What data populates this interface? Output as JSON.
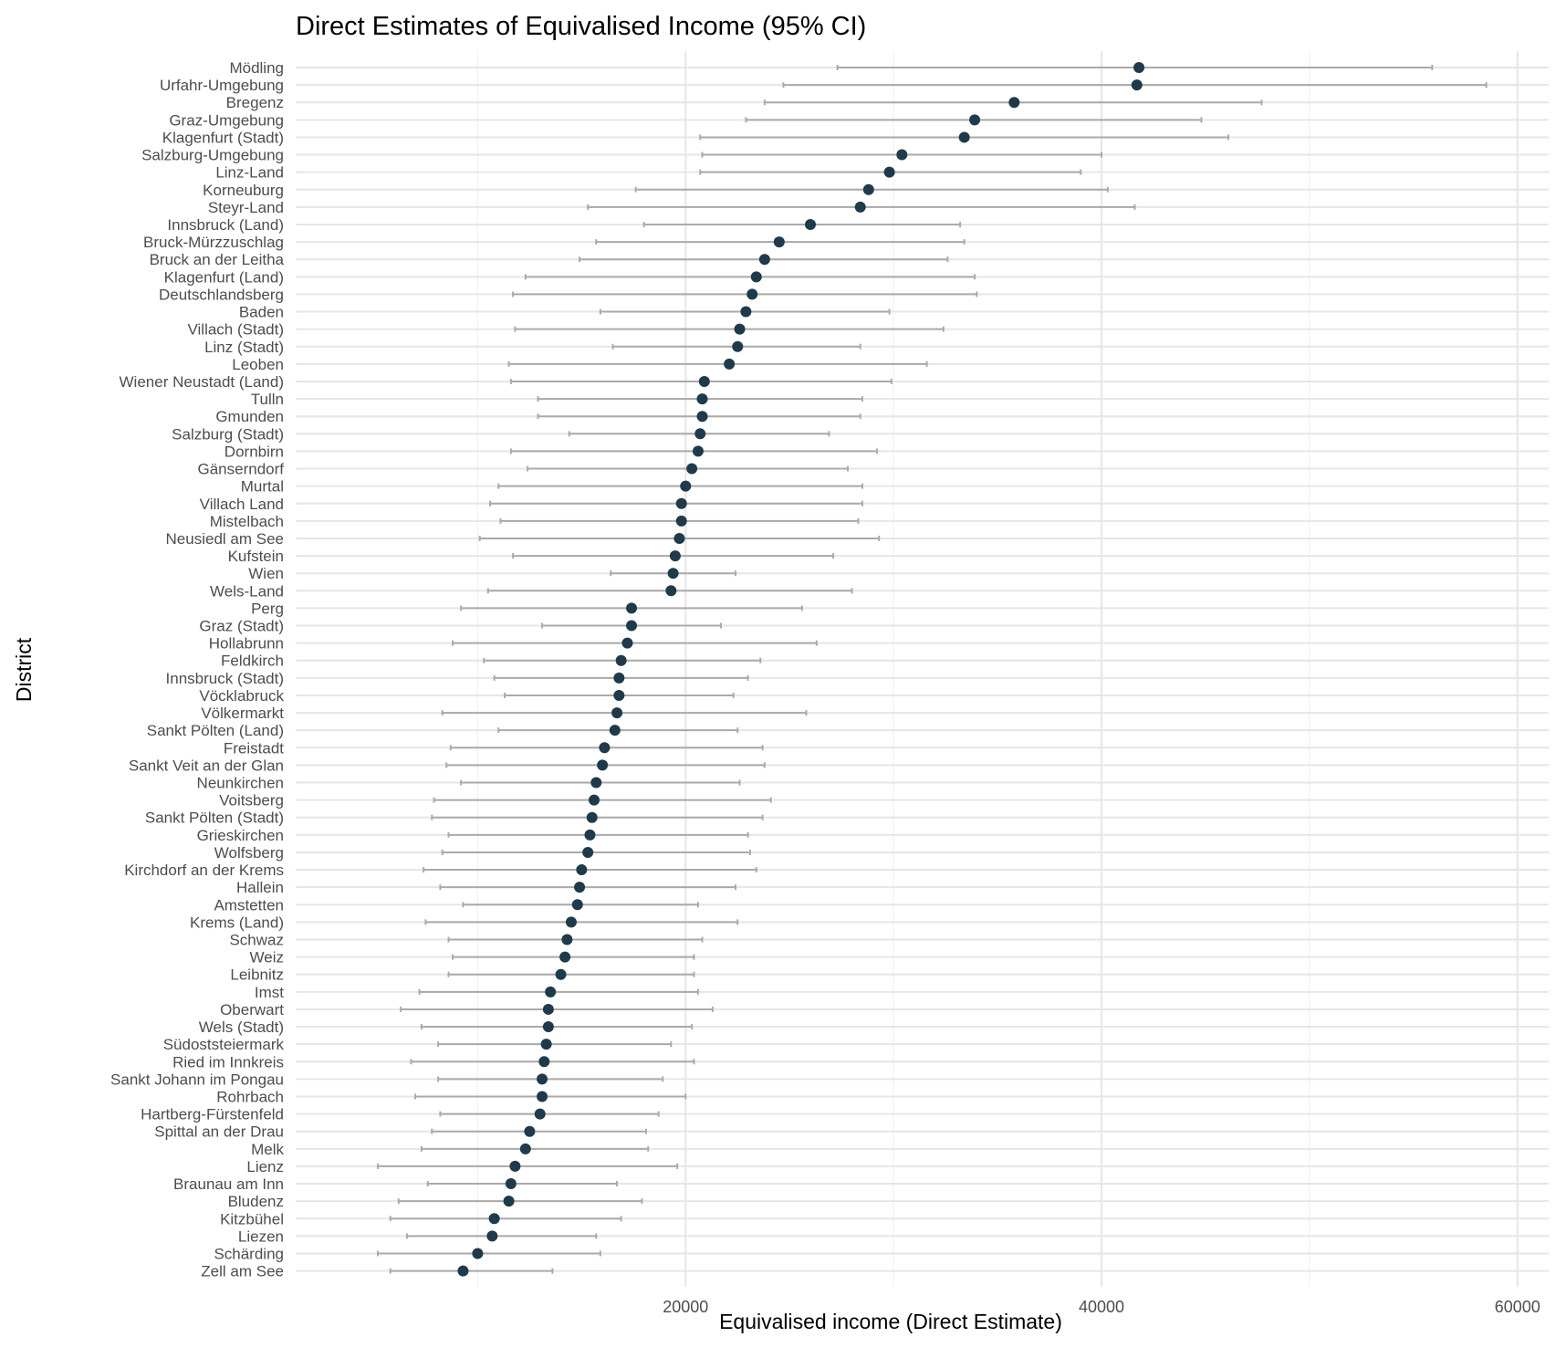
{
  "chart_data": {
    "type": "scatter",
    "title": "Direct Estimates of Equivalised Income (95% CI)",
    "xlabel": "Equivalised income (Direct Estimate)",
    "ylabel": "District",
    "xlim": [
      1250,
      61500
    ],
    "xticks": [
      20000,
      40000,
      60000
    ],
    "xtick_labels": [
      "20000",
      "40000",
      "60000"
    ],
    "grid": true,
    "legend": "none",
    "colors": {
      "point": "#1f3a4a",
      "interval": "#aaaaaa",
      "grid_major": "#e6e6e6",
      "grid_minor": "#f2f2f2"
    },
    "series": [
      {
        "points": [
          {
            "district": "Mödling",
            "estimate": 41800,
            "lower": 27300,
            "upper": 55900
          },
          {
            "district": "Urfahr-Umgebung",
            "estimate": 41700,
            "lower": 24700,
            "upper": 58500
          },
          {
            "district": "Bregenz",
            "estimate": 35800,
            "lower": 23800,
            "upper": 47700
          },
          {
            "district": "Graz-Umgebung",
            "estimate": 33900,
            "lower": 22900,
            "upper": 44800
          },
          {
            "district": "Klagenfurt (Stadt)",
            "estimate": 33400,
            "lower": 20700,
            "upper": 46100
          },
          {
            "district": "Salzburg-Umgebung",
            "estimate": 30400,
            "lower": 20800,
            "upper": 40000
          },
          {
            "district": "Linz-Land",
            "estimate": 29800,
            "lower": 20700,
            "upper": 39000
          },
          {
            "district": "Korneuburg",
            "estimate": 28800,
            "lower": 17600,
            "upper": 40300
          },
          {
            "district": "Steyr-Land",
            "estimate": 28400,
            "lower": 15300,
            "upper": 41600
          },
          {
            "district": "Innsbruck (Land)",
            "estimate": 26000,
            "lower": 18000,
            "upper": 33200
          },
          {
            "district": "Bruck-Mürzzuschlag",
            "estimate": 24500,
            "lower": 15700,
            "upper": 33400
          },
          {
            "district": "Bruck an der Leitha",
            "estimate": 23800,
            "lower": 14900,
            "upper": 32600
          },
          {
            "district": "Klagenfurt (Land)",
            "estimate": 23400,
            "lower": 12300,
            "upper": 33900
          },
          {
            "district": "Deutschlandsberg",
            "estimate": 23200,
            "lower": 11700,
            "upper": 34000
          },
          {
            "district": "Baden",
            "estimate": 22900,
            "lower": 15900,
            "upper": 29800
          },
          {
            "district": "Villach (Stadt)",
            "estimate": 22600,
            "lower": 11800,
            "upper": 32400
          },
          {
            "district": "Linz (Stadt)",
            "estimate": 22500,
            "lower": 16500,
            "upper": 28400
          },
          {
            "district": "Leoben",
            "estimate": 22100,
            "lower": 11500,
            "upper": 31600
          },
          {
            "district": "Wiener Neustadt (Land)",
            "estimate": 20900,
            "lower": 11600,
            "upper": 29900
          },
          {
            "district": "Tulln",
            "estimate": 20800,
            "lower": 12900,
            "upper": 28500
          },
          {
            "district": "Gmunden",
            "estimate": 20800,
            "lower": 12900,
            "upper": 28400
          },
          {
            "district": "Salzburg (Stadt)",
            "estimate": 20700,
            "lower": 14400,
            "upper": 26900
          },
          {
            "district": "Dornbirn",
            "estimate": 20600,
            "lower": 11600,
            "upper": 29200
          },
          {
            "district": "Gänserndorf",
            "estimate": 20300,
            "lower": 12400,
            "upper": 27800
          },
          {
            "district": "Murtal",
            "estimate": 20000,
            "lower": 11000,
            "upper": 28500
          },
          {
            "district": "Villach Land",
            "estimate": 19800,
            "lower": 10600,
            "upper": 28500
          },
          {
            "district": "Mistelbach",
            "estimate": 19800,
            "lower": 11100,
            "upper": 28300
          },
          {
            "district": "Neusiedl am See",
            "estimate": 19700,
            "lower": 10100,
            "upper": 29300
          },
          {
            "district": "Kufstein",
            "estimate": 19500,
            "lower": 11700,
            "upper": 27100
          },
          {
            "district": "Wien",
            "estimate": 19400,
            "lower": 16400,
            "upper": 22400
          },
          {
            "district": "Wels-Land",
            "estimate": 19300,
            "lower": 10500,
            "upper": 28000
          },
          {
            "district": "Perg",
            "estimate": 17400,
            "lower": 9200,
            "upper": 25600
          },
          {
            "district": "Graz (Stadt)",
            "estimate": 17400,
            "lower": 13100,
            "upper": 21700
          },
          {
            "district": "Hollabrunn",
            "estimate": 17200,
            "lower": 8800,
            "upper": 26300
          },
          {
            "district": "Feldkirch",
            "estimate": 16900,
            "lower": 10300,
            "upper": 23600
          },
          {
            "district": "Innsbruck (Stadt)",
            "estimate": 16800,
            "lower": 10800,
            "upper": 23000
          },
          {
            "district": "Vöcklabruck",
            "estimate": 16800,
            "lower": 11300,
            "upper": 22300
          },
          {
            "district": "Völkermarkt",
            "estimate": 16700,
            "lower": 8300,
            "upper": 25800
          },
          {
            "district": "Sankt Pölten (Land)",
            "estimate": 16600,
            "lower": 11000,
            "upper": 22500
          },
          {
            "district": "Freistadt",
            "estimate": 16100,
            "lower": 8700,
            "upper": 23700
          },
          {
            "district": "Sankt Veit an der Glan",
            "estimate": 16000,
            "lower": 8500,
            "upper": 23800
          },
          {
            "district": "Neunkirchen",
            "estimate": 15700,
            "lower": 9200,
            "upper": 22600
          },
          {
            "district": "Voitsberg",
            "estimate": 15600,
            "lower": 7900,
            "upper": 24100
          },
          {
            "district": "Sankt Pölten (Stadt)",
            "estimate": 15500,
            "lower": 7800,
            "upper": 23700
          },
          {
            "district": "Grieskirchen",
            "estimate": 15400,
            "lower": 8600,
            "upper": 23000
          },
          {
            "district": "Wolfsberg",
            "estimate": 15300,
            "lower": 8300,
            "upper": 23100
          },
          {
            "district": "Kirchdorf an der Krems",
            "estimate": 15000,
            "lower": 7400,
            "upper": 23400
          },
          {
            "district": "Hallein",
            "estimate": 14900,
            "lower": 8200,
            "upper": 22400
          },
          {
            "district": "Amstetten",
            "estimate": 14800,
            "lower": 9300,
            "upper": 20600
          },
          {
            "district": "Krems (Land)",
            "estimate": 14500,
            "lower": 7500,
            "upper": 22500
          },
          {
            "district": "Schwaz",
            "estimate": 14300,
            "lower": 8600,
            "upper": 20800
          },
          {
            "district": "Weiz",
            "estimate": 14200,
            "lower": 8800,
            "upper": 20400
          },
          {
            "district": "Leibnitz",
            "estimate": 14000,
            "lower": 8600,
            "upper": 20400
          },
          {
            "district": "Imst",
            "estimate": 13500,
            "lower": 7200,
            "upper": 20600
          },
          {
            "district": "Oberwart",
            "estimate": 13400,
            "lower": 6300,
            "upper": 21300
          },
          {
            "district": "Wels (Stadt)",
            "estimate": 13400,
            "lower": 7300,
            "upper": 20300
          },
          {
            "district": "Südoststeiermark",
            "estimate": 13300,
            "lower": 8100,
            "upper": 19300
          },
          {
            "district": "Ried im Innkreis",
            "estimate": 13200,
            "lower": 6800,
            "upper": 20400
          },
          {
            "district": "Sankt Johann im Pongau",
            "estimate": 13100,
            "lower": 8100,
            "upper": 18900
          },
          {
            "district": "Rohrbach",
            "estimate": 13100,
            "lower": 7000,
            "upper": 20000
          },
          {
            "district": "Hartberg-Fürstenfeld",
            "estimate": 13000,
            "lower": 8200,
            "upper": 18700
          },
          {
            "district": "Spittal an der Drau",
            "estimate": 12500,
            "lower": 7800,
            "upper": 18100
          },
          {
            "district": "Melk",
            "estimate": 12300,
            "lower": 7300,
            "upper": 18200
          },
          {
            "district": "Lienz",
            "estimate": 11800,
            "lower": 5200,
            "upper": 19600
          },
          {
            "district": "Braunau am Inn",
            "estimate": 11600,
            "lower": 7600,
            "upper": 16700
          },
          {
            "district": "Bludenz",
            "estimate": 11500,
            "lower": 6200,
            "upper": 17900
          },
          {
            "district": "Kitzbühel",
            "estimate": 10800,
            "lower": 5800,
            "upper": 16900
          },
          {
            "district": "Liezen",
            "estimate": 10700,
            "lower": 6600,
            "upper": 15700
          },
          {
            "district": "Schärding",
            "estimate": 10000,
            "lower": 5200,
            "upper": 15900
          },
          {
            "district": "Zell am See",
            "estimate": 9300,
            "lower": 5800,
            "upper": 13600
          }
        ]
      }
    ]
  }
}
